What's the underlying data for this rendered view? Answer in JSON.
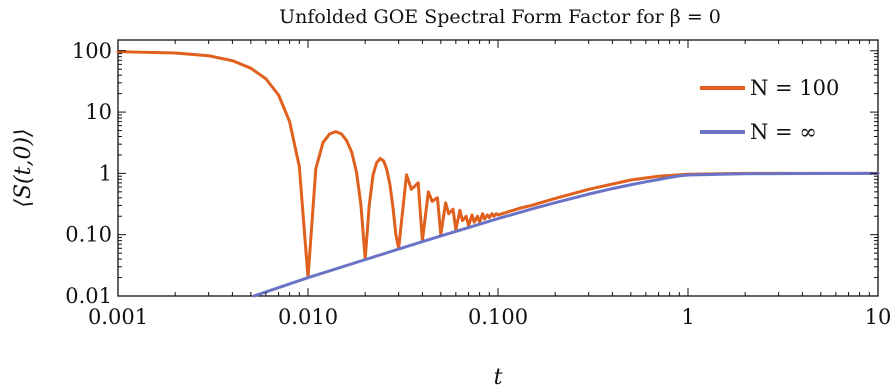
{
  "chart_data": {
    "type": "line",
    "title": "Unfolded GOE Spectral Form Factor for β = 0",
    "xlabel": "t",
    "ylabel": "⟨S(t,0)⟩",
    "x_scale": "log",
    "y_scale": "log",
    "xlim": [
      0.001,
      10
    ],
    "ylim": [
      0.01,
      150
    ],
    "x_ticks": [
      {
        "value": 0.001,
        "label": "0.001"
      },
      {
        "value": 0.01,
        "label": "0.010"
      },
      {
        "value": 0.1,
        "label": "0.100"
      },
      {
        "value": 1,
        "label": "1"
      },
      {
        "value": 10,
        "label": "10"
      }
    ],
    "y_ticks": [
      {
        "value": 0.01,
        "label": "0.01"
      },
      {
        "value": 0.1,
        "label": "0.10"
      },
      {
        "value": 1,
        "label": "1"
      },
      {
        "value": 10,
        "label": "10"
      },
      {
        "value": 100,
        "label": "100"
      }
    ],
    "grid": false,
    "legend_position": "top-right",
    "series": [
      {
        "name": "N = 100",
        "color": "#e0601e",
        "x": [
          0.001,
          0.002,
          0.003,
          0.004,
          0.005,
          0.006,
          0.007,
          0.008,
          0.009,
          0.01,
          0.011,
          0.012,
          0.013,
          0.014,
          0.015,
          0.016,
          0.017,
          0.018,
          0.019,
          0.02,
          0.021,
          0.022,
          0.023,
          0.024,
          0.025,
          0.026,
          0.027,
          0.028,
          0.029,
          0.03,
          0.033,
          0.035,
          0.038,
          0.04,
          0.043,
          0.045,
          0.048,
          0.05,
          0.053,
          0.055,
          0.058,
          0.06,
          0.063,
          0.065,
          0.068,
          0.07,
          0.073,
          0.075,
          0.078,
          0.08,
          0.083,
          0.085,
          0.088,
          0.09,
          0.093,
          0.095,
          0.098,
          0.1,
          0.11,
          0.12,
          0.13,
          0.15,
          0.2,
          0.3,
          0.5,
          0.7,
          1,
          2,
          5,
          10
        ],
        "y": [
          97,
          92,
          83,
          69,
          52,
          35,
          19,
          7,
          1.3,
          0.02,
          1.2,
          3.2,
          4.4,
          4.8,
          4.4,
          3.4,
          2.2,
          1.05,
          0.3,
          0.04,
          0.3,
          0.95,
          1.5,
          1.75,
          1.6,
          1.15,
          0.65,
          0.28,
          0.1,
          0.06,
          0.95,
          0.55,
          0.7,
          0.08,
          0.5,
          0.35,
          0.4,
          0.1,
          0.33,
          0.22,
          0.26,
          0.12,
          0.25,
          0.17,
          0.2,
          0.14,
          0.21,
          0.16,
          0.2,
          0.16,
          0.22,
          0.18,
          0.21,
          0.19,
          0.22,
          0.2,
          0.22,
          0.21,
          0.23,
          0.25,
          0.27,
          0.3,
          0.39,
          0.55,
          0.78,
          0.9,
          0.97,
          1.0,
          1.0,
          1.0
        ]
      },
      {
        "name": "N = ∞",
        "color": "#6a74c6",
        "x": [
          0.0052,
          0.01,
          0.02,
          0.03,
          0.05,
          0.07,
          0.1,
          0.15,
          0.2,
          0.3,
          0.4,
          0.5,
          0.6,
          0.7,
          0.8,
          0.9,
          1,
          1.5,
          2,
          3,
          5,
          10
        ],
        "y": [
          0.01,
          0.0199,
          0.0392,
          0.0583,
          0.0954,
          0.131,
          0.183,
          0.262,
          0.333,
          0.459,
          0.565,
          0.653,
          0.729,
          0.796,
          0.856,
          0.91,
          0.94,
          0.97,
          0.985,
          0.993,
          0.998,
          1.0
        ]
      }
    ]
  }
}
